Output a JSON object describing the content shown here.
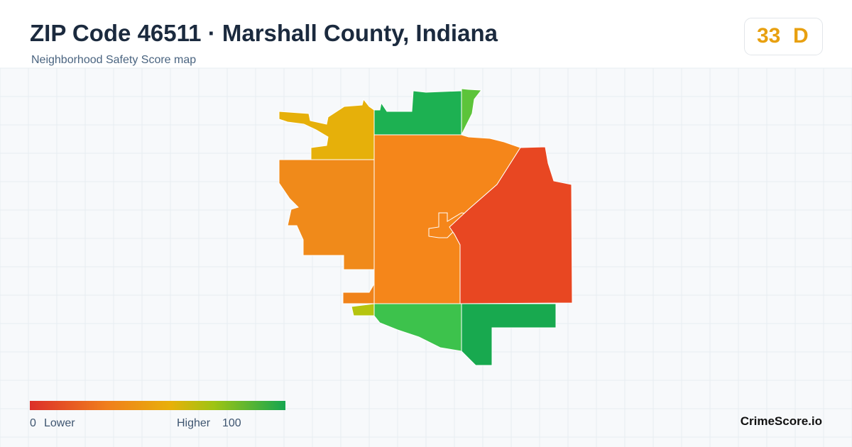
{
  "header": {
    "title": "ZIP Code 46511 · Marshall County, Indiana",
    "subtitle": "Neighborhood Safety Score map"
  },
  "score": {
    "value": "33",
    "grade": "D"
  },
  "legend": {
    "min": "0",
    "min_label": "Lower",
    "max_label": "Higher",
    "max": "100"
  },
  "brand": "CrimeScore.io"
}
